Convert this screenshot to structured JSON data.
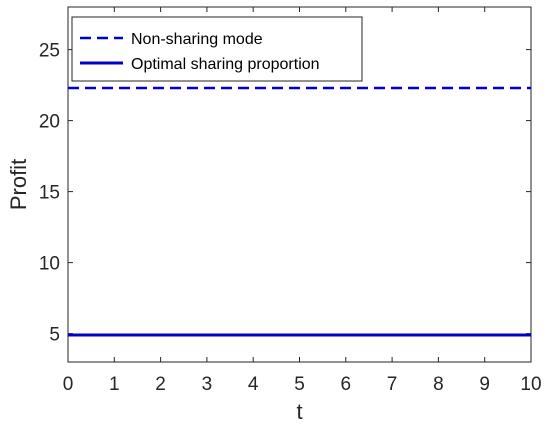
{
  "chart_data": {
    "type": "line",
    "xlabel": "t",
    "ylabel": "Profit",
    "xlim": [
      0,
      10
    ],
    "ylim": [
      3,
      28
    ],
    "xticks": [
      "0",
      "1",
      "2",
      "3",
      "4",
      "5",
      "6",
      "7",
      "8",
      "9",
      "10"
    ],
    "yticks": [
      "5",
      "10",
      "15",
      "20",
      "25"
    ],
    "grid": false,
    "legend_position": "top-left",
    "series": [
      {
        "name": "Non-sharing mode",
        "style": "dashed",
        "color": "#0000cc",
        "x": [
          0,
          10
        ],
        "y": [
          22.3,
          22.3
        ]
      },
      {
        "name": "Optimal sharing proportion",
        "style": "solid",
        "color": "#0000cc",
        "x": [
          0,
          10
        ],
        "y": [
          4.9,
          4.9
        ]
      }
    ]
  }
}
